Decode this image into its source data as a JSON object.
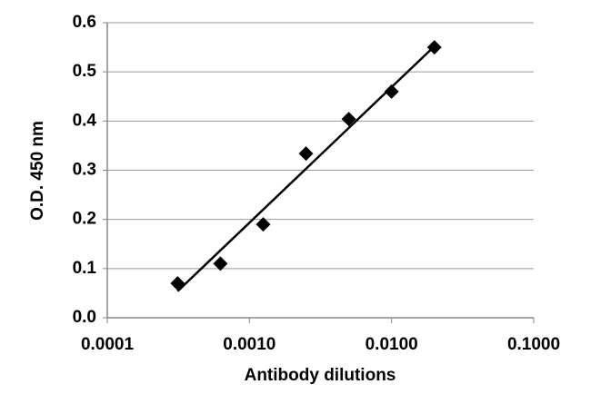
{
  "chart_data": {
    "type": "scatter",
    "x_label": "Antibody dilutions",
    "y_label": "O.D. 450 nm",
    "x_scale": "log",
    "series": [
      {
        "color": "#000000",
        "x": [
          0.0003125,
          0.000625,
          0.00125,
          0.0025,
          0.005,
          0.01,
          0.02
        ],
        "values": [
          0.07,
          0.11,
          0.19,
          0.334,
          0.404,
          0.46,
          0.55
        ]
      }
    ],
    "trendline": {
      "color": "#000000",
      "x": [
        0.0003125,
        0.02
      ],
      "values": [
        0.054,
        0.552
      ]
    },
    "xlim": [
      0.0001,
      0.1
    ],
    "xticks": [
      0.0001,
      {
        "value": 0.001,
        "label": "0.0010"
      },
      {
        "value": 0.01,
        "label": "0.0100"
      },
      {
        "value": 0.1,
        "label": "0.1000"
      }
    ],
    "ylim": [
      0,
      0.6
    ],
    "yticks": [
      {
        "value": 0,
        "label": "0.0"
      },
      0.1,
      0.2,
      0.3,
      0.4,
      0.5,
      0.6
    ],
    "grid": true
  }
}
